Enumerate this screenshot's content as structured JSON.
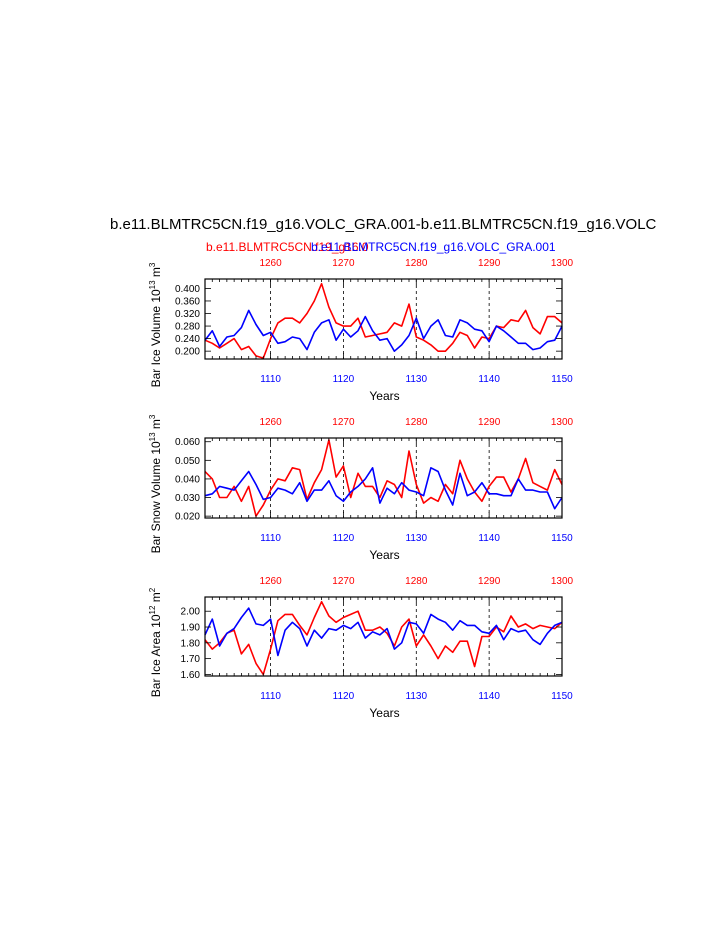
{
  "title": "b.e11.BLMTRC5CN.f19_g16.VOLC_GRA.001-b.e11.BLMTRC5CN.f19_g16.VOLC",
  "legend": {
    "red_run": "b.e11.BLMTRC5CN.f19_g16.0",
    "blue_run": "b.e11.BLMTRC5CN.f19_g16.VOLC_GRA.001"
  },
  "colors": {
    "red_series": "#ff0000",
    "blue_series": "#0000ff",
    "axes": "#000000"
  },
  "chart_data": [
    {
      "type": "line",
      "name": "ice-volume",
      "ylabel": "Bar Ice Volume 10^13 m^3",
      "xlabel": "Years",
      "top_ticks": [
        "1260",
        "1270",
        "1280",
        "1290",
        "1300"
      ],
      "bottom_ticks": [
        "1110",
        "1120",
        "1130",
        "1140",
        "1150"
      ],
      "y_ticks": [
        "0.200",
        "0.240",
        "0.280",
        "0.320",
        "0.360",
        "0.400"
      ],
      "ylim": [
        0.175,
        0.43
      ],
      "xlim": [
        1101,
        1150
      ],
      "grid": "dashed verticals at 1110, 1120, 1130, 1140",
      "x": [
        1101,
        1102,
        1103,
        1104,
        1105,
        1106,
        1107,
        1108,
        1109,
        1110,
        1111,
        1112,
        1113,
        1114,
        1115,
        1116,
        1117,
        1118,
        1119,
        1120,
        1121,
        1122,
        1123,
        1124,
        1125,
        1126,
        1127,
        1128,
        1129,
        1130,
        1131,
        1132,
        1133,
        1134,
        1135,
        1136,
        1137,
        1138,
        1139,
        1140,
        1141,
        1142,
        1143,
        1144,
        1145,
        1146,
        1147,
        1148,
        1149,
        1150
      ],
      "series": [
        {
          "color": "red",
          "values": [
            0.235,
            0.225,
            0.21,
            0.225,
            0.24,
            0.205,
            0.215,
            0.185,
            0.178,
            0.24,
            0.29,
            0.305,
            0.305,
            0.29,
            0.32,
            0.36,
            0.415,
            0.34,
            0.29,
            0.28,
            0.28,
            0.305,
            0.245,
            0.25,
            0.255,
            0.26,
            0.29,
            0.28,
            0.35,
            0.245,
            0.235,
            0.22,
            0.2,
            0.2,
            0.225,
            0.26,
            0.25,
            0.21,
            0.245,
            0.24,
            0.28,
            0.275,
            0.3,
            0.295,
            0.33,
            0.275,
            0.255,
            0.31,
            0.31,
            0.29
          ]
        },
        {
          "color": "blue",
          "values": [
            0.235,
            0.265,
            0.215,
            0.245,
            0.25,
            0.275,
            0.33,
            0.285,
            0.25,
            0.26,
            0.225,
            0.23,
            0.245,
            0.24,
            0.205,
            0.26,
            0.29,
            0.3,
            0.235,
            0.27,
            0.245,
            0.265,
            0.31,
            0.265,
            0.235,
            0.24,
            0.2,
            0.22,
            0.25,
            0.305,
            0.24,
            0.28,
            0.3,
            0.25,
            0.245,
            0.3,
            0.29,
            0.27,
            0.265,
            0.23,
            0.28,
            0.265,
            0.245,
            0.225,
            0.225,
            0.205,
            0.21,
            0.23,
            0.235,
            0.28
          ]
        }
      ]
    },
    {
      "type": "line",
      "name": "snow-volume",
      "ylabel": "Bar Snow Volume 10^13 m^3",
      "xlabel": "Years",
      "top_ticks": [
        "1260",
        "1270",
        "1280",
        "1290",
        "1300"
      ],
      "bottom_ticks": [
        "1110",
        "1120",
        "1130",
        "1140",
        "1150"
      ],
      "y_ticks": [
        "0.020",
        "0.030",
        "0.040",
        "0.050",
        "0.060"
      ],
      "ylim": [
        0.019,
        0.062
      ],
      "xlim": [
        1101,
        1150
      ],
      "grid": "dashed verticals at 1110, 1120, 1130, 1140",
      "x": [
        1101,
        1102,
        1103,
        1104,
        1105,
        1106,
        1107,
        1108,
        1109,
        1110,
        1111,
        1112,
        1113,
        1114,
        1115,
        1116,
        1117,
        1118,
        1119,
        1120,
        1121,
        1122,
        1123,
        1124,
        1125,
        1126,
        1127,
        1128,
        1129,
        1130,
        1131,
        1132,
        1133,
        1134,
        1135,
        1136,
        1137,
        1138,
        1139,
        1140,
        1141,
        1142,
        1143,
        1144,
        1145,
        1146,
        1147,
        1148,
        1149,
        1150
      ],
      "series": [
        {
          "color": "red",
          "values": [
            0.044,
            0.04,
            0.03,
            0.03,
            0.036,
            0.028,
            0.036,
            0.02,
            0.026,
            0.034,
            0.04,
            0.039,
            0.046,
            0.045,
            0.029,
            0.038,
            0.045,
            0.061,
            0.041,
            0.047,
            0.03,
            0.043,
            0.036,
            0.036,
            0.03,
            0.039,
            0.037,
            0.03,
            0.055,
            0.037,
            0.027,
            0.03,
            0.028,
            0.037,
            0.032,
            0.05,
            0.04,
            0.033,
            0.028,
            0.036,
            0.041,
            0.041,
            0.033,
            0.04,
            0.051,
            0.038,
            0.036,
            0.034,
            0.045,
            0.037
          ]
        },
        {
          "color": "blue",
          "values": [
            0.031,
            0.032,
            0.036,
            0.035,
            0.034,
            0.039,
            0.044,
            0.037,
            0.029,
            0.03,
            0.035,
            0.034,
            0.032,
            0.038,
            0.028,
            0.034,
            0.034,
            0.039,
            0.031,
            0.028,
            0.033,
            0.036,
            0.04,
            0.046,
            0.027,
            0.035,
            0.032,
            0.038,
            0.034,
            0.033,
            0.031,
            0.046,
            0.044,
            0.034,
            0.026,
            0.043,
            0.031,
            0.033,
            0.038,
            0.032,
            0.032,
            0.031,
            0.031,
            0.04,
            0.034,
            0.034,
            0.033,
            0.033,
            0.024,
            0.03
          ]
        }
      ]
    },
    {
      "type": "line",
      "name": "ice-area",
      "ylabel": "Bar Ice Area 10^12 m^2",
      "xlabel": "Years",
      "top_ticks": [
        "1260",
        "1270",
        "1280",
        "1290",
        "1300"
      ],
      "bottom_ticks": [
        "1110",
        "1120",
        "1130",
        "1140",
        "1150"
      ],
      "y_ticks": [
        "1.60",
        "1.70",
        "1.80",
        "1.90",
        "2.00"
      ],
      "ylim": [
        1.59,
        2.09
      ],
      "xlim": [
        1101,
        1150
      ],
      "grid": "dashed verticals at 1110, 1120, 1130, 1140",
      "x": [
        1101,
        1102,
        1103,
        1104,
        1105,
        1106,
        1107,
        1108,
        1109,
        1110,
        1111,
        1112,
        1113,
        1114,
        1115,
        1116,
        1117,
        1118,
        1119,
        1120,
        1121,
        1122,
        1123,
        1124,
        1125,
        1126,
        1127,
        1128,
        1129,
        1130,
        1131,
        1132,
        1133,
        1134,
        1135,
        1136,
        1137,
        1138,
        1139,
        1140,
        1141,
        1142,
        1143,
        1144,
        1145,
        1146,
        1147,
        1148,
        1149,
        1150
      ],
      "series": [
        {
          "color": "red",
          "values": [
            1.82,
            1.76,
            1.8,
            1.86,
            1.88,
            1.73,
            1.79,
            1.67,
            1.6,
            1.76,
            1.94,
            1.98,
            1.98,
            1.91,
            1.85,
            1.96,
            2.06,
            1.97,
            1.93,
            1.96,
            1.98,
            2.0,
            1.88,
            1.88,
            1.9,
            1.86,
            1.78,
            1.9,
            1.95,
            1.78,
            1.85,
            1.78,
            1.7,
            1.78,
            1.74,
            1.81,
            1.81,
            1.65,
            1.84,
            1.84,
            1.9,
            1.87,
            1.97,
            1.9,
            1.92,
            1.89,
            1.91,
            1.9,
            1.89,
            1.93
          ]
        },
        {
          "color": "blue",
          "values": [
            1.85,
            1.95,
            1.78,
            1.86,
            1.89,
            1.96,
            2.02,
            1.92,
            1.91,
            1.95,
            1.72,
            1.88,
            1.93,
            1.89,
            1.78,
            1.88,
            1.83,
            1.89,
            1.88,
            1.91,
            1.89,
            1.93,
            1.83,
            1.87,
            1.85,
            1.89,
            1.76,
            1.8,
            1.93,
            1.92,
            1.86,
            1.98,
            1.95,
            1.93,
            1.88,
            1.94,
            1.91,
            1.91,
            1.87,
            1.86,
            1.91,
            1.82,
            1.89,
            1.87,
            1.88,
            1.82,
            1.79,
            1.86,
            1.91,
            1.93
          ]
        }
      ]
    }
  ]
}
